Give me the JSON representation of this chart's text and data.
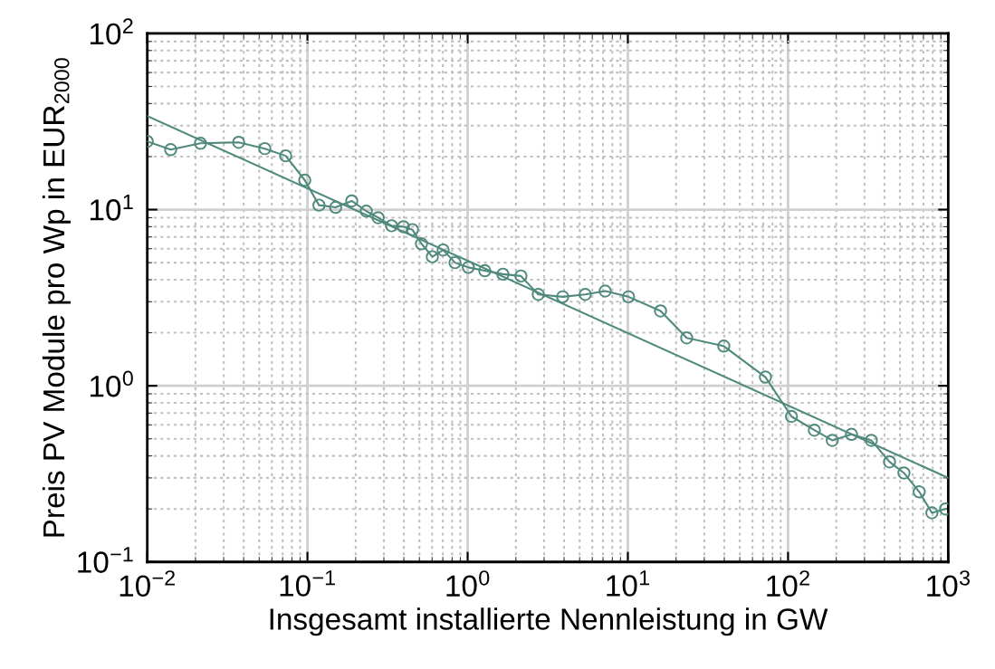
{
  "chart_data": {
    "type": "line",
    "xlabel": "Insgesamt installierte Nennleistung in GW",
    "ylabel": "Preis PV Module pro Wp in EUR$_{2000}$",
    "log": "xy",
    "grid": true,
    "xlim": [
      0.01,
      1000
    ],
    "ylim": [
      0.1,
      100
    ],
    "xticks": [
      {
        "value": 0.01,
        "label": "10$^{−2}$"
      },
      {
        "value": 0.1,
        "label": "10$^{−1}$"
      },
      {
        "value": 1,
        "label": "10$^{0}$"
      },
      {
        "value": 10,
        "label": "10$^{1}$"
      },
      {
        "value": 100,
        "label": "10$^{2}$"
      },
      {
        "value": 1000,
        "label": "10$^{3}$"
      }
    ],
    "yticks": [
      {
        "value": 0.1,
        "label": "10$^{−1}$"
      },
      {
        "value": 1,
        "label": "10$^{0}$"
      },
      {
        "value": 10,
        "label": "10$^{1}$"
      },
      {
        "value": 100,
        "label": "10$^{2}$"
      }
    ],
    "series": [
      {
        "color": "#4f8a7c",
        "marker": "circle",
        "x": [
          0.01,
          0.014,
          0.0215,
          0.0372,
          0.0542,
          0.0731,
          0.0962,
          0.118,
          0.15,
          0.189,
          0.233,
          0.276,
          0.335,
          0.397,
          0.452,
          0.515,
          0.602,
          0.703,
          0.834,
          1.01,
          1.28,
          1.66,
          2.15,
          2.76,
          3.92,
          5.42,
          7.22,
          10.1,
          16.0,
          23.3,
          39.7,
          72.3,
          105,
          146,
          189,
          249,
          331,
          430,
          529,
          659,
          791,
          962
        ],
        "values": [
          24.4,
          21.9,
          23.8,
          24.1,
          22.2,
          20.2,
          14.7,
          10.6,
          10.3,
          11.2,
          9.8,
          9.0,
          8.1,
          8.0,
          7.7,
          6.4,
          5.4,
          5.9,
          5.0,
          4.7,
          4.5,
          4.3,
          4.2,
          3.3,
          3.2,
          3.3,
          3.45,
          3.2,
          2.66,
          1.87,
          1.68,
          1.12,
          0.67,
          0.56,
          0.49,
          0.53,
          0.49,
          0.37,
          0.32,
          0.25,
          0.19,
          0.2
        ]
      },
      {
        "color": "#4f8a7c",
        "marker": "none",
        "x": [
          0.01,
          1000
        ],
        "values": [
          34,
          0.3
        ]
      }
    ]
  }
}
